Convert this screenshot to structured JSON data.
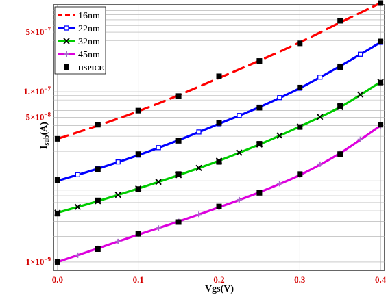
{
  "chart_data": {
    "type": "line",
    "title": "",
    "xlabel": "Vgs(V)",
    "ylabel_main": "I",
    "ylabel_sub": "sub",
    "ylabel_unit": "(A)",
    "xlim": [
      -0.005,
      0.405
    ],
    "ylim": [
      8e-10,
      1.05e-06
    ],
    "yscale": "log",
    "grid": true,
    "legend_position": "top-left",
    "x_ticks": [
      {
        "value": 0.0,
        "label": "0.0"
      },
      {
        "value": 0.1,
        "label": "0.1"
      },
      {
        "value": 0.2,
        "label": "0.2"
      },
      {
        "value": 0.3,
        "label": "0.3"
      },
      {
        "value": 0.4,
        "label": "0.4"
      }
    ],
    "y_ticks": [
      {
        "value": 1e-09,
        "label": "1×10",
        "exp": "−9"
      },
      {
        "value": 5e-08,
        "label": "5×10",
        "exp": "−8"
      },
      {
        "value": 1e-07,
        "label": "1.×10",
        "exp": "−7"
      },
      {
        "value": 5e-07,
        "label": "5×10",
        "exp": "−7"
      }
    ],
    "series": [
      {
        "name": "16nm",
        "color": "#ff0000",
        "style": "dashed",
        "marker": "none",
        "x": [
          0.0,
          0.05,
          0.1,
          0.15,
          0.2,
          0.25,
          0.3,
          0.35,
          0.4
        ],
        "y": [
          2.8e-08,
          4e-08,
          5.9e-08,
          9.1e-08,
          1.45e-07,
          2.32e-07,
          3.8e-07,
          6.5e-07,
          1.1e-06
        ]
      },
      {
        "name": "22nm",
        "color": "#0000ff",
        "style": "solid",
        "marker": "square-open",
        "x": [
          0.0,
          0.05,
          0.1,
          0.15,
          0.2,
          0.25,
          0.3,
          0.35,
          0.4
        ],
        "y": [
          9e-09,
          1.25e-08,
          1.8e-08,
          2.7e-08,
          4.2e-08,
          6.6e-08,
          1.1e-07,
          2e-07,
          3.8e-07
        ]
      },
      {
        "name": "32nm",
        "color": "#00cc00",
        "style": "solid",
        "marker": "x",
        "x": [
          0.0,
          0.05,
          0.1,
          0.15,
          0.2,
          0.25,
          0.3,
          0.35,
          0.4
        ],
        "y": [
          3.8e-09,
          5.2e-09,
          7.3e-09,
          1.05e-08,
          1.55e-08,
          2.4e-08,
          3.9e-08,
          6.6e-08,
          1.3e-07
        ]
      },
      {
        "name": "45nm",
        "color": "#dd00dd",
        "style": "solid",
        "marker": "plus",
        "x": [
          0.0,
          0.05,
          0.1,
          0.15,
          0.2,
          0.25,
          0.3,
          0.35,
          0.4
        ],
        "y": [
          1e-09,
          1.45e-09,
          2.1e-09,
          3e-09,
          4.4e-09,
          6.6e-09,
          1.05e-08,
          1.9e-08,
          4e-08
        ]
      },
      {
        "name": "HSPICE",
        "color": "#000000",
        "style": "none",
        "marker": "square-filled",
        "x": [
          0.0,
          0.05,
          0.1,
          0.15,
          0.2,
          0.25,
          0.3,
          0.35,
          0.4,
          0.0,
          0.05,
          0.1,
          0.15,
          0.2,
          0.25,
          0.3,
          0.35,
          0.4,
          0.0,
          0.05,
          0.1,
          0.15,
          0.2,
          0.25,
          0.3,
          0.35,
          0.4,
          0.0,
          0.05,
          0.1,
          0.15,
          0.2,
          0.25,
          0.3,
          0.35,
          0.4
        ],
        "y": [
          2.8e-08,
          4.1e-08,
          6e-08,
          8.9e-08,
          1.52e-07,
          2.3e-07,
          3.7e-07,
          6.8e-07,
          1.1e-06,
          9.2e-09,
          1.23e-08,
          1.85e-08,
          2.65e-08,
          4.3e-08,
          6.5e-08,
          1.12e-07,
          1.95e-07,
          3.9e-07,
          3.7e-09,
          5.3e-09,
          7.2e-09,
          1.08e-08,
          1.5e-08,
          2.45e-08,
          3.85e-08,
          6.8e-08,
          1.28e-07,
          1e-09,
          1.42e-09,
          2.15e-09,
          2.95e-09,
          4.5e-09,
          6.5e-09,
          1.08e-08,
          1.85e-08,
          4.1e-08
        ]
      }
    ]
  }
}
